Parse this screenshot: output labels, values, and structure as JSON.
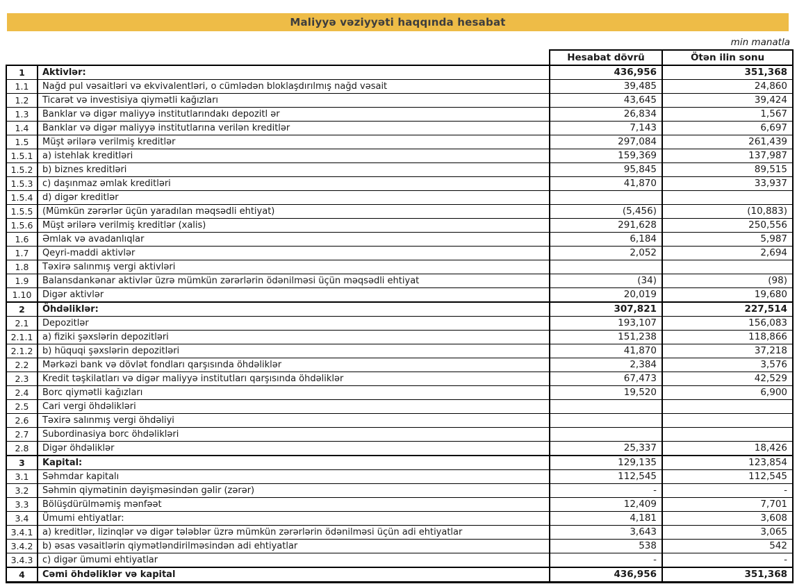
{
  "page": {
    "title": "Maliyyə vəziyyəti haqqında hesabat",
    "unit_note": "min manatla"
  },
  "colors": {
    "title_bar_bg": "#EEBC47",
    "title_text": "#3D3D3D",
    "table_border": "#000000"
  },
  "table": {
    "headers": {
      "period_current": "Hesabat dövrü",
      "period_previous": "Ötən ilin sonu"
    },
    "rows": [
      {
        "no": "1",
        "label": "Aktivlər:",
        "current": "436,956",
        "previous": "351,368",
        "section": true,
        "values_bold": true
      },
      {
        "no": "1.1",
        "label": "Nağd pul vəsaitləri və ekvivalentləri, o cümlədən bloklaşdırılmış nağd vəsait",
        "current": "39,485",
        "previous": "24,860"
      },
      {
        "no": "1.2",
        "label": "Ticarət və investisiya qiymətli kağızları",
        "current": "43,645",
        "previous": "39,424"
      },
      {
        "no": "1.3",
        "label": "Banklar və digər maliyyə institutlarındakı depozitl ər",
        "current": "26,834",
        "previous": "1,567"
      },
      {
        "no": "1.4",
        "label": "Banklar və digər maliyyə institutlarına verilən kreditlər",
        "current": "7,143",
        "previous": "6,697"
      },
      {
        "no": "1.5",
        "label": "Müşt ərilərə verilmiş kreditlər",
        "current": "297,084",
        "previous": "261,439"
      },
      {
        "no": "1.5.1",
        "label": "a) istehlak kreditləri",
        "current": "159,369",
        "previous": "137,987"
      },
      {
        "no": "1.5.2",
        "label": "b) biznes kreditləri",
        "current": "95,845",
        "previous": "89,515"
      },
      {
        "no": "1.5.3",
        "label": "c) daşınmaz əmlak kreditləri",
        "current": "41,870",
        "previous": "33,937"
      },
      {
        "no": "1.5.4",
        "label": "d) digər kreditlər",
        "current": "",
        "previous": ""
      },
      {
        "no": "1.5.5",
        "label": "(Mümkün zərərlər üçün yaradılan məqsədli ehtiyat)",
        "current": "(5,456)",
        "previous": "(10,883)"
      },
      {
        "no": "1.5.6",
        "label": "Müşt ərilərə verilmiş kreditlər (xalis)",
        "current": "291,628",
        "previous": "250,556"
      },
      {
        "no": "1.6",
        "label": "Əmlak və avadanlıqlar",
        "current": "6,184",
        "previous": "5,987"
      },
      {
        "no": "1.7",
        "label": "Qeyri-maddi aktivlər",
        "current": "2,052",
        "previous": "2,694"
      },
      {
        "no": "1.8",
        "label": "Təxirə salınmış vergi aktivləri",
        "current": "",
        "previous": ""
      },
      {
        "no": "1.9",
        "label": "Balansdankənar aktivlər üzrə mümkün zərərlərin ödənilməsi üçün məqsədli ehtiyat",
        "current": "(34)",
        "previous": "(98)"
      },
      {
        "no": "1.10",
        "label": "Digər aktivlər",
        "current": "20,019",
        "previous": "19,680"
      },
      {
        "no": "2",
        "label": "Öhdəliklər:",
        "current": "307,821",
        "previous": "227,514",
        "section": true,
        "values_bold": true
      },
      {
        "no": "2.1",
        "label": "Depozitlər",
        "current": "193,107",
        "previous": "156,083"
      },
      {
        "no": "2.1.1",
        "label": "a) fiziki şəxslərin depozitləri",
        "current": "151,238",
        "previous": "118,866"
      },
      {
        "no": "2.1.2",
        "label": "b) hüquqi şəxslərin depozitləri",
        "current": "41,870",
        "previous": "37,218"
      },
      {
        "no": "2.2",
        "label": "Mərkəzi bank və dövlət fondları qarşısında öhdəliklər",
        "current": "2,384",
        "previous": "3,576"
      },
      {
        "no": "2.3",
        "label": "Kredit təşkilatları və digər maliyyə institutları qarşısında öhdəliklər",
        "current": "67,473",
        "previous": "42,529"
      },
      {
        "no": "2.4",
        "label": "Borc qiymətli kağızları",
        "current": "19,520",
        "previous": "6,900"
      },
      {
        "no": "2.5",
        "label": "Cari vergi öhdəlikləri",
        "current": "",
        "previous": ""
      },
      {
        "no": "2.6",
        "label": "Təxirə salınmış vergi öhdəliyi",
        "current": "",
        "previous": ""
      },
      {
        "no": "2.7",
        "label": "Subordinasiya borc öhdəlikləri",
        "current": "",
        "previous": ""
      },
      {
        "no": "2.8",
        "label": "Digər öhdəliklər",
        "current": "25,337",
        "previous": "18,426"
      },
      {
        "no": "3",
        "label": "Kapital:",
        "current": "129,135",
        "previous": "123,854",
        "section": true,
        "values_bold": false
      },
      {
        "no": "3.1",
        "label": "Səhmdar kapitalı",
        "current": "112,545",
        "previous": "112,545"
      },
      {
        "no": "3.2",
        "label": "Səhmin qiymətinin dəyişməsindən gəlir (zərər)",
        "current": "-",
        "previous": "-"
      },
      {
        "no": "3.3",
        "label": "Bölüşdürülməmiş mənfəət",
        "current": "12,409",
        "previous": "7,701"
      },
      {
        "no": "3.4",
        "label": "Ümumi ehtiyatlar:",
        "current": "4,181",
        "previous": "3,608"
      },
      {
        "no": "3.4.1",
        "label": "a) kreditlər, lizinqlər və digər tələblər üzrə mümkün zərərlərin ödənilməsi üçün adi ehtiyatlar",
        "current": "3,643",
        "previous": "3,065"
      },
      {
        "no": "3.4.2",
        "label": "b) əsas vəsaitlərin qiymətləndirilməsindən adi ehtiyatlar",
        "current": "538",
        "previous": "542"
      },
      {
        "no": "3.4.3",
        "label": "c) digər ümumi ehtiyatlar",
        "current": "-",
        "previous": "-"
      },
      {
        "no": "4",
        "label": "Cəmi öhdəliklər və kapital",
        "current": "436,956",
        "previous": "351,368",
        "section": true,
        "values_bold": true,
        "total": true
      }
    ]
  }
}
